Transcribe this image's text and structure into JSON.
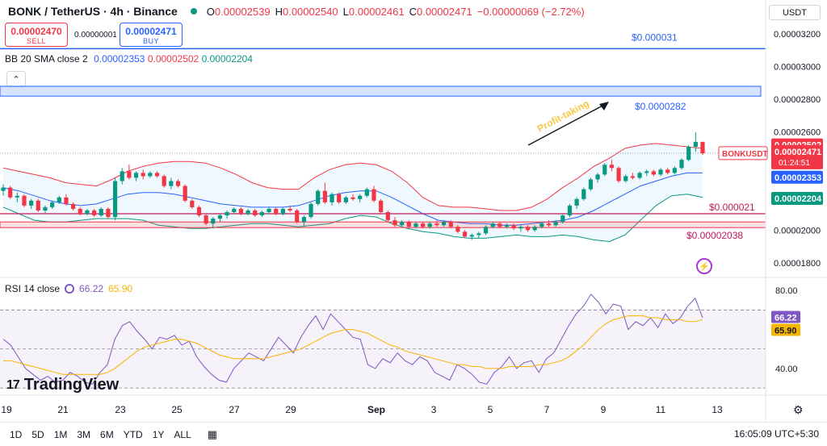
{
  "legend": {
    "symbol": "BONK / TetherUS · 4h · Binance",
    "o_label": "O",
    "o": "0.00002539",
    "h_label": "H",
    "h": "0.00002540",
    "l_label": "L",
    "l": "0.00002461",
    "c_label": "C",
    "c": "0.00002471",
    "change": "−0.00000069 (−2.72%)"
  },
  "trade": {
    "sell_price": "0.00002470",
    "sell_label": "SELL",
    "spread": "0.00000001",
    "buy_price": "0.00002471",
    "buy_label": "BUY"
  },
  "bb": {
    "label": "BB 20 SMA close 2",
    "basis": "0.00002353",
    "upper": "0.00002502",
    "lower": "0.00002204"
  },
  "rsi": {
    "label": "RSI 14 close",
    "value": "66.22",
    "ma": "65.90"
  },
  "currency": "USDT",
  "watermark": "TradingView",
  "timeframes": [
    "1D",
    "5D",
    "1M",
    "3M",
    "6M",
    "YTD",
    "1Y",
    "ALL"
  ],
  "clock": "16:05:09 UTC+5:30",
  "colors": {
    "up": "#089981",
    "down": "#f23645",
    "basis": "#2962ff",
    "upper": "#f23645",
    "lower": "#089981",
    "rsi": "#7e57c2",
    "rsi_ma": "#f7b500"
  },
  "chart_data": [
    {
      "type": "candlestick",
      "x_ticks": [
        "19",
        "21",
        "23",
        "25",
        "27",
        "29",
        "Sep",
        "3",
        "5",
        "7",
        "9",
        "11",
        "13"
      ],
      "y_ticks": [
        "0.00003200",
        "0.00003000",
        "0.00002800",
        "0.00002600",
        "0.00002400",
        "0.00002200",
        "0.00002000",
        "0.00001800"
      ],
      "ylim": [
        1.72e-05,
        3.28e-05
      ],
      "annotations": {
        "resistance_top": "$0.000031",
        "resistance_zone": "$0.0000282",
        "arrow_label": "Profit-taking",
        "support_1": "$0.000021",
        "support_2": "$0.00002038",
        "symbol_tag": "BONKUSDT",
        "countdown": "01:24:51"
      },
      "levels": {
        "top": 3.11e-05,
        "zone_low": 2.82e-05,
        "zone_high": 2.88e-05,
        "support_1": 2.1e-05,
        "support_2": 2.03e-05,
        "last": 2.471e-05
      },
      "ohlc": [
        [
          2.24e-05,
          2.28e-05,
          2.21e-05,
          2.26e-05
        ],
        [
          2.26e-05,
          2.27e-05,
          2.19e-05,
          2.2e-05
        ],
        [
          2.2e-05,
          2.23e-05,
          2.17e-05,
          2.21e-05
        ],
        [
          2.21e-05,
          2.22e-05,
          2.14e-05,
          2.15e-05
        ],
        [
          2.15e-05,
          2.19e-05,
          2.13e-05,
          2.18e-05
        ],
        [
          2.18e-05,
          2.19e-05,
          2.11e-05,
          2.12e-05
        ],
        [
          2.12e-05,
          2.15e-05,
          2.1e-05,
          2.14e-05
        ],
        [
          2.14e-05,
          2.18e-05,
          2.13e-05,
          2.17e-05
        ],
        [
          2.17e-05,
          2.21e-05,
          2.16e-05,
          2.2e-05
        ],
        [
          2.2e-05,
          2.22e-05,
          2.15e-05,
          2.16e-05
        ],
        [
          2.16e-05,
          2.17e-05,
          2.12e-05,
          2.13e-05
        ],
        [
          2.13e-05,
          2.14e-05,
          2.09e-05,
          2.1e-05
        ],
        [
          2.1e-05,
          2.13e-05,
          2.09e-05,
          2.12e-05
        ],
        [
          2.12e-05,
          2.13e-05,
          2.08e-05,
          2.09e-05
        ],
        [
          2.09e-05,
          2.14e-05,
          2.08e-05,
          2.13e-05
        ],
        [
          2.13e-05,
          2.14e-05,
          2.07e-05,
          2.08e-05
        ],
        [
          2.08e-05,
          2.32e-05,
          2.06e-05,
          2.3e-05
        ],
        [
          2.3e-05,
          2.38e-05,
          2.28e-05,
          2.36e-05
        ],
        [
          2.36e-05,
          2.4e-05,
          2.31e-05,
          2.32e-05
        ],
        [
          2.32e-05,
          2.36e-05,
          2.3e-05,
          2.35e-05
        ],
        [
          2.35e-05,
          2.37e-05,
          2.31e-05,
          2.33e-05
        ],
        [
          2.33e-05,
          2.36e-05,
          2.32e-05,
          2.35e-05
        ],
        [
          2.35e-05,
          2.36e-05,
          2.32e-05,
          2.33e-05
        ],
        [
          2.33e-05,
          2.34e-05,
          2.26e-05,
          2.27e-05
        ],
        [
          2.27e-05,
          2.32e-05,
          2.25e-05,
          2.3e-05
        ],
        [
          2.3e-05,
          2.31e-05,
          2.26e-05,
          2.27e-05
        ],
        [
          2.27e-05,
          2.28e-05,
          2.17e-05,
          2.18e-05
        ],
        [
          2.18e-05,
          2.19e-05,
          2.13e-05,
          2.14e-05
        ],
        [
          2.14e-05,
          2.15e-05,
          2.08e-05,
          2.09e-05
        ],
        [
          2.09e-05,
          2.1e-05,
          2.03e-05,
          2.04e-05
        ],
        [
          2.04e-05,
          2.08e-05,
          2.01e-05,
          2.07e-05
        ],
        [
          2.07e-05,
          2.1e-05,
          2.05e-05,
          2.09e-05
        ],
        [
          2.09e-05,
          2.12e-05,
          2.07e-05,
          2.11e-05
        ],
        [
          2.11e-05,
          2.14e-05,
          2.1e-05,
          2.13e-05
        ],
        [
          2.13e-05,
          2.14e-05,
          2.09e-05,
          2.1e-05
        ],
        [
          2.1e-05,
          2.13e-05,
          2.09e-05,
          2.12e-05
        ],
        [
          2.12e-05,
          2.13e-05,
          2.08e-05,
          2.09e-05
        ],
        [
          2.09e-05,
          2.12e-05,
          2.08e-05,
          2.11e-05
        ],
        [
          2.11e-05,
          2.14e-05,
          2.1e-05,
          2.13e-05
        ],
        [
          2.13e-05,
          2.14e-05,
          2.09e-05,
          2.1e-05
        ],
        [
          2.1e-05,
          2.14e-05,
          2.09e-05,
          2.13e-05
        ],
        [
          2.13e-05,
          2.15e-05,
          2.11e-05,
          2.12e-05
        ],
        [
          2.12e-05,
          2.13e-05,
          2.04e-05,
          2.05e-05
        ],
        [
          2.05e-05,
          2.09e-05,
          2.02e-05,
          2.08e-05
        ],
        [
          2.08e-05,
          2.17e-05,
          2.07e-05,
          2.16e-05
        ],
        [
          2.16e-05,
          2.25e-05,
          2.15e-05,
          2.24e-05
        ],
        [
          2.24e-05,
          2.29e-05,
          2.16e-05,
          2.17e-05
        ],
        [
          2.17e-05,
          2.23e-05,
          2.15e-05,
          2.22e-05
        ],
        [
          2.22e-05,
          2.23e-05,
          2.16e-05,
          2.17e-05
        ],
        [
          2.17e-05,
          2.21e-05,
          2.16e-05,
          2.2e-05
        ],
        [
          2.2e-05,
          2.22e-05,
          2.18e-05,
          2.19e-05
        ],
        [
          2.19e-05,
          2.22e-05,
          2.17e-05,
          2.21e-05
        ],
        [
          2.21e-05,
          2.26e-05,
          2.2e-05,
          2.25e-05
        ],
        [
          2.25e-05,
          2.27e-05,
          2.17e-05,
          2.18e-05
        ],
        [
          2.18e-05,
          2.19e-05,
          2.1e-05,
          2.11e-05
        ],
        [
          2.11e-05,
          2.12e-05,
          2.05e-05,
          2.06e-05
        ],
        [
          2.06e-05,
          2.08e-05,
          2.02e-05,
          2.03e-05
        ],
        [
          2.03e-05,
          2.06e-05,
          2.02e-05,
          2.05e-05
        ],
        [
          2.05e-05,
          2.06e-05,
          2.01e-05,
          2.02e-05
        ],
        [
          2.02e-05,
          2.05e-05,
          2.01e-05,
          2.04e-05
        ],
        [
          2.04e-05,
          2.05e-05,
          2.01e-05,
          2.02e-05
        ],
        [
          2.02e-05,
          2.05e-05,
          2.01e-05,
          2.04e-05
        ],
        [
          2.04e-05,
          2.06e-05,
          2.02e-05,
          2.03e-05
        ],
        [
          2.03e-05,
          2.06e-05,
          2.02e-05,
          2.05e-05
        ],
        [
          2.05e-05,
          2.06e-05,
          2.01e-05,
          2.02e-05
        ],
        [
          2.02e-05,
          2.03e-05,
          1.98e-05,
          1.99e-05
        ],
        [
          1.99e-05,
          2e-05,
          1.95e-05,
          1.96e-05
        ],
        [
          1.96e-05,
          1.98e-05,
          1.94e-05,
          1.97e-05
        ],
        [
          1.97e-05,
          1.99e-05,
          1.95e-05,
          1.98e-05
        ],
        [
          1.98e-05,
          2.03e-05,
          1.97e-05,
          2.02e-05
        ],
        [
          2.02e-05,
          2.05e-05,
          2.01e-05,
          2.04e-05
        ],
        [
          2.04e-05,
          2.05e-05,
          2.01e-05,
          2.02e-05
        ],
        [
          2.02e-05,
          2.04e-05,
          2.01e-05,
          2.03e-05
        ],
        [
          2.03e-05,
          2.04e-05,
          2e-05,
          2.01e-05
        ],
        [
          2.01e-05,
          2.03e-05,
          1.99e-05,
          2.02e-05
        ],
        [
          2.02e-05,
          2.03e-05,
          1.99e-05,
          2e-05
        ],
        [
          2e-05,
          2.03e-05,
          1.99e-05,
          2.02e-05
        ],
        [
          2.02e-05,
          2.05e-05,
          2.01e-05,
          2.04e-05
        ],
        [
          2.04e-05,
          2.06e-05,
          2.02e-05,
          2.03e-05
        ],
        [
          2.03e-05,
          2.06e-05,
          2.02e-05,
          2.05e-05
        ],
        [
          2.05e-05,
          2.1e-05,
          2.04e-05,
          2.09e-05
        ],
        [
          2.09e-05,
          2.16e-05,
          2.08e-05,
          2.15e-05
        ],
        [
          2.15e-05,
          2.2e-05,
          2.13e-05,
          2.19e-05
        ],
        [
          2.19e-05,
          2.26e-05,
          2.18e-05,
          2.25e-05
        ],
        [
          2.25e-05,
          2.32e-05,
          2.24e-05,
          2.31e-05
        ],
        [
          2.31e-05,
          2.35e-05,
          2.29e-05,
          2.34e-05
        ],
        [
          2.34e-05,
          2.41e-05,
          2.33e-05,
          2.4e-05
        ],
        [
          2.4e-05,
          2.43e-05,
          2.36e-05,
          2.38e-05
        ],
        [
          2.38e-05,
          2.39e-05,
          2.29e-05,
          2.3e-05
        ],
        [
          2.3e-05,
          2.34e-05,
          2.29e-05,
          2.33e-05
        ],
        [
          2.33e-05,
          2.35e-05,
          2.31e-05,
          2.32e-05
        ],
        [
          2.32e-05,
          2.36e-05,
          2.31e-05,
          2.35e-05
        ],
        [
          2.35e-05,
          2.37e-05,
          2.33e-05,
          2.36e-05
        ],
        [
          2.36e-05,
          2.37e-05,
          2.33e-05,
          2.34e-05
        ],
        [
          2.34e-05,
          2.38e-05,
          2.33e-05,
          2.37e-05
        ],
        [
          2.37e-05,
          2.38e-05,
          2.34e-05,
          2.35e-05
        ],
        [
          2.35e-05,
          2.39e-05,
          2.34e-05,
          2.38e-05
        ],
        [
          2.38e-05,
          2.44e-05,
          2.37e-05,
          2.43e-05
        ],
        [
          2.43e-05,
          2.52e-05,
          2.42e-05,
          2.51e-05
        ],
        [
          2.51e-05,
          2.6e-05,
          2.48e-05,
          2.54e-05
        ],
        [
          2.54e-05,
          2.54e-05,
          2.46e-05,
          2.47e-05
        ]
      ],
      "bb_upper": [
        2.38e-05,
        2.36e-05,
        2.34e-05,
        2.32e-05,
        2.29e-05,
        2.28e-05,
        2.27e-05,
        2.31e-05,
        2.36e-05,
        2.39e-05,
        2.41e-05,
        2.42e-05,
        2.42e-05,
        2.41e-05,
        2.38e-05,
        2.34e-05,
        2.29e-05,
        2.26e-05,
        2.25e-05,
        2.25e-05,
        2.32e-05,
        2.37e-05,
        2.4e-05,
        2.41e-05,
        2.4e-05,
        2.36e-05,
        2.29e-05,
        2.2e-05,
        2.15e-05,
        2.14e-05,
        2.14e-05,
        2.13e-05,
        2.12e-05,
        2.12e-05,
        2.14e-05,
        2.19e-05,
        2.26e-05,
        2.32e-05,
        2.39e-05,
        2.44e-05,
        2.5e-05,
        2.52e-05,
        2.53e-05,
        2.52e-05,
        2.51e-05,
        2.5e-05
      ],
      "bb_lower": [
        2.14e-05,
        2.1e-05,
        2.06e-05,
        2.05e-05,
        2.05e-05,
        2.06e-05,
        2.07e-05,
        2.07e-05,
        2.07e-05,
        2.06e-05,
        2.03e-05,
        2.02e-05,
        2.01e-05,
        2.01e-05,
        2.02e-05,
        2.03e-05,
        2.04e-05,
        2.04e-05,
        2.03e-05,
        2.02e-05,
        2.03e-05,
        2.04e-05,
        2.07e-05,
        2.09e-05,
        2.08e-05,
        2.04e-05,
        2.01e-05,
        1.99e-05,
        1.98e-05,
        1.96e-05,
        1.95e-05,
        1.95e-05,
        1.96e-05,
        1.97e-05,
        1.96e-05,
        1.96e-05,
        1.97e-05,
        1.96e-05,
        1.94e-05,
        1.93e-05,
        1.97e-05,
        2.06e-05,
        2.15e-05,
        2.21e-05,
        2.22e-05,
        2.2e-05
      ],
      "bb_basis": [
        2.26e-05,
        2.24e-05,
        2.21e-05,
        2.18e-05,
        2.16e-05,
        2.15e-05,
        2.16e-05,
        2.19e-05,
        2.22e-05,
        2.23e-05,
        2.23e-05,
        2.22e-05,
        2.2e-05,
        2.18e-05,
        2.16e-05,
        2.15e-05,
        2.14e-05,
        2.14e-05,
        2.14e-05,
        2.15e-05,
        2.18e-05,
        2.21e-05,
        2.23e-05,
        2.24e-05,
        2.24e-05,
        2.2e-05,
        2.15e-05,
        2.1e-05,
        2.06e-05,
        2.05e-05,
        2.04e-05,
        2.04e-05,
        2.03e-05,
        2.03e-05,
        2.04e-05,
        2.05e-05,
        2.06e-05,
        2.08e-05,
        2.12e-05,
        2.17e-05,
        2.22e-05,
        2.27e-05,
        2.3e-05,
        2.33e-05,
        2.35e-05,
        2.35e-05
      ]
    },
    {
      "type": "line",
      "name": "RSI 14 close",
      "y_ticks": [
        "80.00",
        "40.00"
      ],
      "ylim": [
        28,
        85
      ],
      "bands": [
        70,
        30
      ],
      "midline": 50,
      "rsi": [
        55,
        52,
        46,
        40,
        37,
        34,
        36,
        33,
        34,
        38,
        36,
        33,
        32,
        38,
        42,
        55,
        62,
        64,
        59,
        55,
        50,
        56,
        55,
        57,
        52,
        54,
        46,
        41,
        37,
        34,
        33,
        40,
        44,
        48,
        46,
        44,
        50,
        56,
        52,
        48,
        56,
        62,
        67,
        60,
        68,
        64,
        60,
        56,
        55,
        42,
        40,
        45,
        43,
        48,
        44,
        42,
        46,
        44,
        38,
        36,
        34,
        42,
        40,
        37,
        33,
        32,
        38,
        41,
        46,
        40,
        43,
        44,
        38,
        45,
        48,
        55,
        62,
        68,
        72,
        78,
        74,
        68,
        73,
        72,
        60,
        64,
        62,
        66,
        61,
        68,
        63,
        66,
        72,
        76,
        66
      ],
      "rsi_ma": [
        44,
        44,
        43,
        42,
        41,
        40,
        39,
        38,
        37,
        37,
        37,
        37,
        37,
        37,
        38,
        40,
        43,
        46,
        49,
        51,
        52,
        53,
        54,
        55,
        55,
        54,
        53,
        51,
        49,
        47,
        46,
        45,
        45,
        45,
        45,
        45,
        46,
        47,
        48,
        49,
        50,
        52,
        54,
        56,
        58,
        59,
        60,
        60,
        59,
        58,
        56,
        54,
        52,
        51,
        49,
        48,
        47,
        46,
        45,
        44,
        43,
        42,
        42,
        41,
        41,
        40,
        40,
        40,
        41,
        41,
        41,
        41,
        42,
        42,
        43,
        44,
        46,
        49,
        52,
        56,
        60,
        63,
        65,
        66,
        67,
        67,
        67,
        66,
        66,
        65,
        65,
        65,
        64,
        64,
        65
      ],
      "labels": {
        "rsi": "66.22",
        "ma": "65.90"
      }
    }
  ]
}
